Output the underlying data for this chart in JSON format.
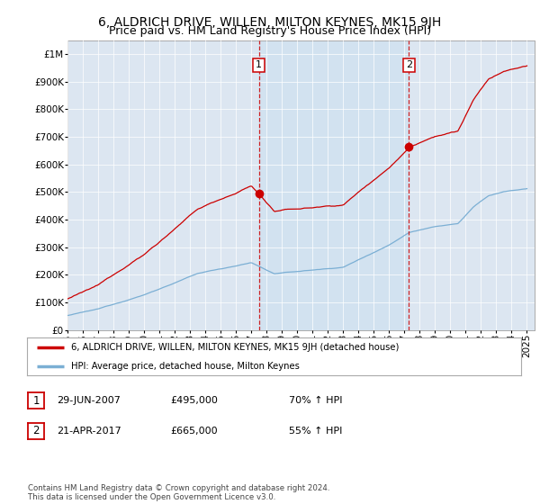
{
  "title": "6, ALDRICH DRIVE, WILLEN, MILTON KEYNES, MK15 9JH",
  "subtitle": "Price paid vs. HM Land Registry's House Price Index (HPI)",
  "sale1_date": "29-JUN-2007",
  "sale1_price": 495000,
  "sale1_label": "1",
  "sale1_year": 2007.49,
  "sale1_hpi_pct": "70%",
  "sale2_date": "21-APR-2017",
  "sale2_price": 665000,
  "sale2_label": "2",
  "sale2_year": 2017.3,
  "sale2_hpi_pct": "55%",
  "legend_line1": "6, ALDRICH DRIVE, WILLEN, MILTON KEYNES, MK15 9JH (detached house)",
  "legend_line2": "HPI: Average price, detached house, Milton Keynes",
  "footer": "Contains HM Land Registry data © Crown copyright and database right 2024.\nThis data is licensed under the Open Government Licence v3.0.",
  "line_color_red": "#cc0000",
  "line_color_blue": "#7bafd4",
  "shade_color": "#ddeeff",
  "background_color": "#dce6f1",
  "ylim_min": 0,
  "ylim_max": 1050000,
  "xmin": 1995,
  "xmax": 2025.5,
  "title_fontsize": 10,
  "subtitle_fontsize": 9,
  "tick_fontsize": 7.5
}
